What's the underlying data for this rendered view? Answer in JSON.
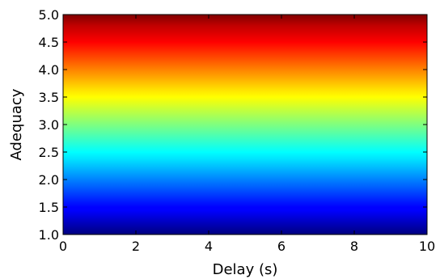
{
  "chart_data": {
    "type": "heatmap",
    "title": "",
    "xlabel": "Delay (s)",
    "ylabel": "Adequacy",
    "xlim": [
      0,
      10
    ],
    "ylim": [
      1.0,
      5.0
    ],
    "x_ticks": [
      0,
      2,
      4,
      6,
      8,
      10
    ],
    "x_tick_labels": [
      "0",
      "2",
      "4",
      "6",
      "8",
      "10"
    ],
    "y_ticks": [
      1.0,
      1.5,
      2.0,
      2.5,
      3.0,
      3.5,
      4.0,
      4.5,
      5.0
    ],
    "y_tick_labels": [
      "1.0",
      "1.5",
      "2.0",
      "2.5",
      "3.0",
      "3.5",
      "4.0",
      "4.5",
      "5.0"
    ],
    "colormap": "jet",
    "color_varies_with": "y",
    "grid": false,
    "legend": "none"
  }
}
